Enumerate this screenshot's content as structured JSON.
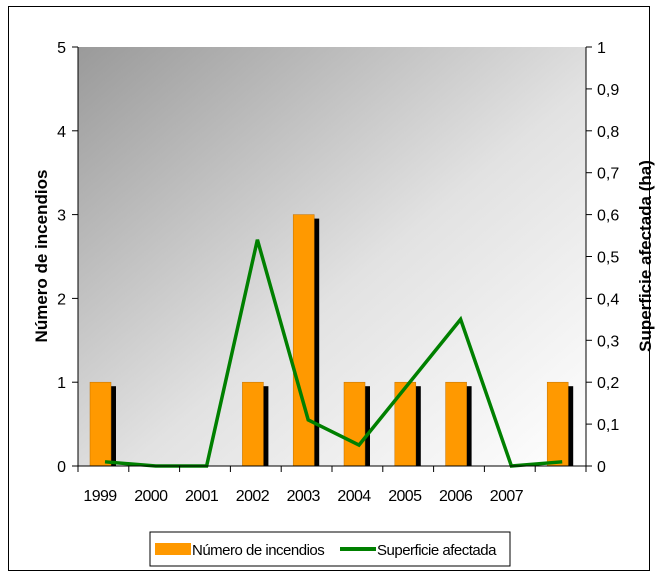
{
  "chart_data": {
    "type": "bar",
    "categories": [
      "1999",
      "2000",
      "2001",
      "2002",
      "2003",
      "2004",
      "2005",
      "2006",
      "2007",
      ""
    ],
    "series": [
      {
        "name": "Número de incendios",
        "type": "bar",
        "axis": "left",
        "color": "#ff9900",
        "values": [
          1,
          0,
          0,
          1,
          3,
          1,
          1,
          1,
          0,
          1
        ]
      },
      {
        "name": "Superficie afectada",
        "type": "line",
        "axis": "right",
        "color": "#008000",
        "values": [
          0.01,
          0,
          0,
          0.54,
          0.11,
          0.05,
          0.2,
          0.35,
          0,
          0.01
        ]
      }
    ],
    "ylabel": "Número de incendios",
    "y2label": "Superficie afectada (ha)",
    "ylim": [
      0,
      5
    ],
    "y2lim": [
      0,
      1
    ],
    "yticks": [
      "0",
      "1",
      "2",
      "3",
      "4",
      "5"
    ],
    "y2ticks": [
      "0",
      "0,1",
      "0,2",
      "0,3",
      "0,4",
      "0,5",
      "0,6",
      "0,7",
      "0,8",
      "0,9",
      "1"
    ],
    "legend_position": "bottom",
    "grid": false
  }
}
